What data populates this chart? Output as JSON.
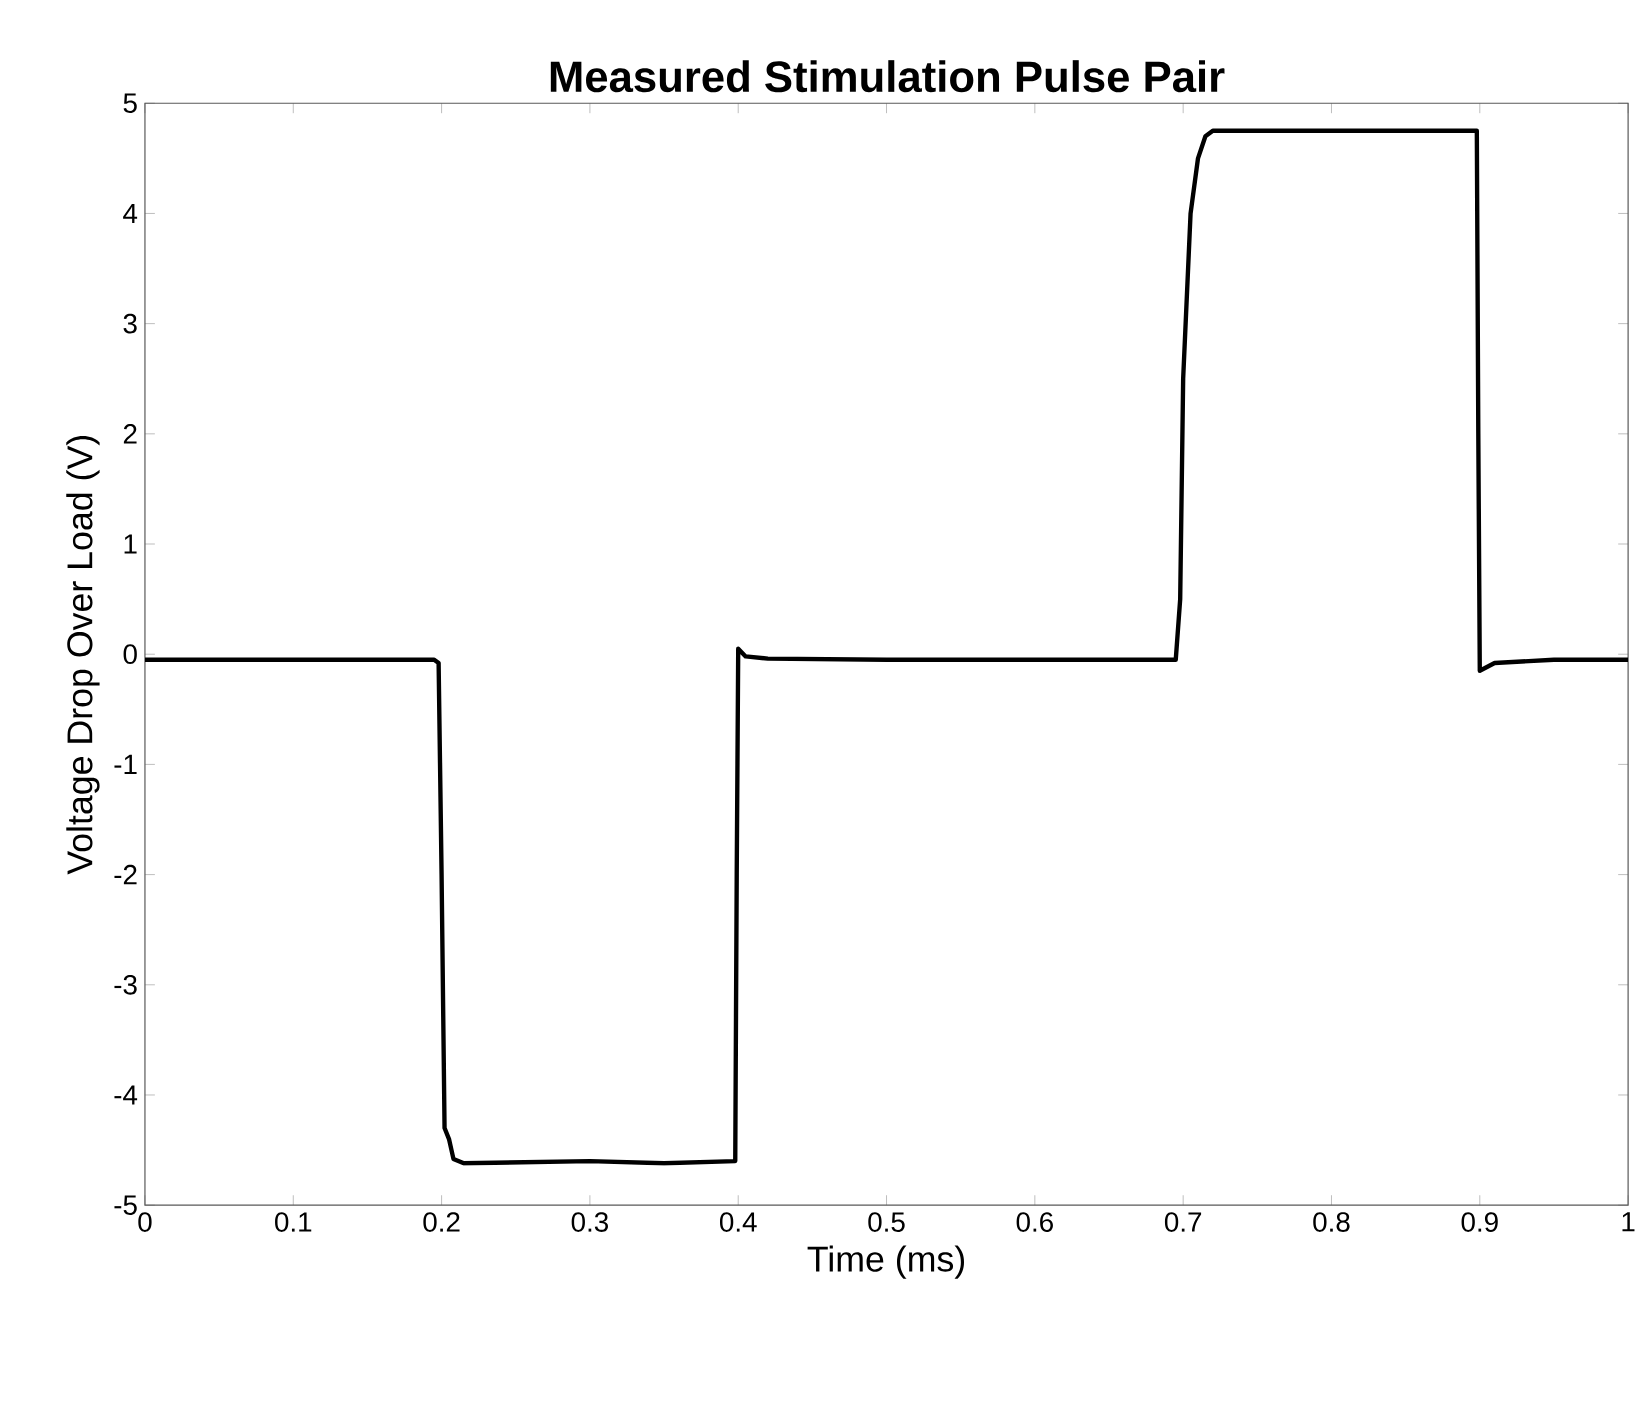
{
  "chart_data": {
    "type": "line",
    "title": "Measured Stimulation Pulse Pair",
    "xlabel": "Time (ms)",
    "ylabel": "Voltage Drop Over Load (V)",
    "xlim": [
      0,
      1
    ],
    "ylim": [
      -5,
      5
    ],
    "xticks": [
      0,
      0.1,
      0.2,
      0.3,
      0.4,
      0.5,
      0.6,
      0.7,
      0.8,
      0.9,
      1
    ],
    "yticks": [
      -5,
      -4,
      -3,
      -2,
      -1,
      0,
      1,
      2,
      3,
      4,
      5
    ],
    "grid": false,
    "marker": "none",
    "line_style": "solid",
    "series": [
      {
        "color": "#000000",
        "x": [
          0,
          0.1,
          0.195,
          0.198,
          0.2,
          0.202,
          0.205,
          0.208,
          0.215,
          0.3,
          0.35,
          0.398,
          0.399,
          0.4,
          0.405,
          0.42,
          0.5,
          0.6,
          0.695,
          0.698,
          0.7,
          0.705,
          0.71,
          0.715,
          0.72,
          0.8,
          0.898,
          0.899,
          0.9,
          0.91,
          0.95,
          1
        ],
        "values": [
          -0.05,
          -0.05,
          -0.05,
          -0.08,
          -2,
          -4.3,
          -4.4,
          -4.58,
          -4.62,
          -4.6,
          -4.62,
          -4.6,
          -2,
          0.05,
          -0.02,
          -0.04,
          -0.05,
          -0.05,
          -0.05,
          0.5,
          2.5,
          4.0,
          4.5,
          4.7,
          4.75,
          4.75,
          4.75,
          2,
          -0.15,
          -0.08,
          -0.05,
          -0.05
        ]
      }
    ]
  }
}
